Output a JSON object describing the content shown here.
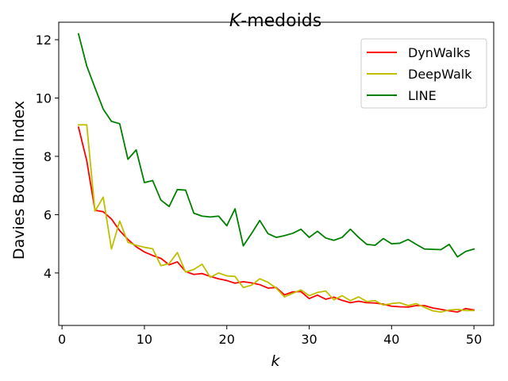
{
  "chart_data": {
    "type": "line",
    "title": "K-medoids",
    "title_italic_part": "K",
    "title_rest": "-medoids",
    "xlabel": "k",
    "ylabel": "Davies Bouldin Index",
    "xlim": [
      -0.4,
      52.4
    ],
    "ylim": [
      2.2,
      12.6
    ],
    "xticks": [
      0,
      10,
      20,
      30,
      40,
      50
    ],
    "yticks": [
      4,
      6,
      8,
      10,
      12
    ],
    "grid": false,
    "legend_position": "top-right",
    "x": [
      2,
      3,
      4,
      5,
      6,
      7,
      8,
      9,
      10,
      11,
      12,
      13,
      14,
      15,
      16,
      17,
      18,
      19,
      20,
      21,
      22,
      23,
      24,
      25,
      26,
      27,
      28,
      29,
      30,
      31,
      32,
      33,
      34,
      35,
      36,
      37,
      38,
      39,
      40,
      41,
      42,
      43,
      44,
      45,
      46,
      47,
      48,
      49,
      50
    ],
    "series": [
      {
        "name": "DynWalks",
        "color": "#ff0000",
        "values": [
          9.0,
          7.85,
          6.15,
          6.1,
          5.85,
          5.45,
          5.15,
          4.9,
          4.72,
          4.6,
          4.5,
          4.28,
          4.38,
          4.05,
          3.95,
          3.98,
          3.88,
          3.8,
          3.74,
          3.65,
          3.7,
          3.66,
          3.6,
          3.48,
          3.5,
          3.25,
          3.35,
          3.36,
          3.12,
          3.24,
          3.1,
          3.17,
          3.06,
          2.98,
          3.03,
          2.98,
          2.97,
          2.93,
          2.86,
          2.84,
          2.83,
          2.88,
          2.88,
          2.8,
          2.75,
          2.7,
          2.66,
          2.78,
          2.73
        ]
      },
      {
        "name": "DeepWalk",
        "color": "#bfbf00",
        "values": [
          9.08,
          9.08,
          6.12,
          6.6,
          4.82,
          5.78,
          5.05,
          4.95,
          4.88,
          4.83,
          4.25,
          4.32,
          4.7,
          4.03,
          4.12,
          4.3,
          3.85,
          4.0,
          3.9,
          3.88,
          3.5,
          3.58,
          3.8,
          3.68,
          3.48,
          3.18,
          3.3,
          3.42,
          3.22,
          3.33,
          3.38,
          3.08,
          3.22,
          3.05,
          3.18,
          3.02,
          3.05,
          2.9,
          2.95,
          2.98,
          2.88,
          2.95,
          2.82,
          2.7,
          2.66,
          2.73,
          2.75,
          2.71,
          2.71
        ]
      },
      {
        "name": "LINE",
        "color": "#008000",
        "values": [
          12.2,
          11.1,
          10.35,
          9.62,
          9.2,
          9.12,
          7.9,
          8.22,
          7.1,
          7.17,
          6.5,
          6.28,
          6.86,
          6.84,
          6.05,
          5.95,
          5.92,
          5.95,
          5.62,
          6.2,
          4.93,
          5.35,
          5.8,
          5.35,
          5.22,
          5.28,
          5.36,
          5.5,
          5.22,
          5.43,
          5.2,
          5.12,
          5.22,
          5.5,
          5.22,
          4.98,
          4.95,
          5.18,
          5.0,
          5.02,
          5.15,
          4.98,
          4.82,
          4.81,
          4.8,
          4.98,
          4.55,
          4.74,
          4.82
        ]
      }
    ]
  }
}
